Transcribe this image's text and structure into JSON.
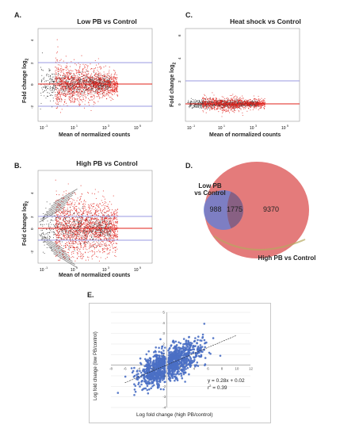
{
  "panels": {
    "a": {
      "letter": "A.",
      "title": "Low PB vs Control",
      "xlabel": "Mean of normalized counts",
      "ylabel_main": "Fold change log",
      "ylabel_sub": "2"
    },
    "b": {
      "letter": "B.",
      "title": "High PB vs Control",
      "xlabel": "Mean of normalized counts",
      "ylabel_main": "Fold change log",
      "ylabel_sub": "2"
    },
    "c": {
      "letter": "C.",
      "title": "Heat shock vs Control",
      "xlabel": "Mean of normalized counts",
      "ylabel_main": "Fold change log",
      "ylabel_sub": "2"
    },
    "d": {
      "letter": "D.",
      "label_low_1": "Low PB",
      "label_low_2": "vs Control",
      "label_high": "High PB vs Control"
    },
    "e": {
      "letter": "E.",
      "xlabel": "Log fold change (high PB/control)",
      "ylabel": "Log fold change (low PB/control)",
      "equation": "y = 0.28x + 0.02",
      "r2_prefix": "r",
      "r2_sup": "2",
      "r2_value": " = 0.39"
    }
  },
  "colors": {
    "red": "#e0201a",
    "gray": "#3c3c3c",
    "blue": "#4a6fc4",
    "venn_red": "#e27070",
    "venn_blue": "#6b7fd0",
    "line_blue": "#9a9ae0"
  },
  "chart_data": [
    {
      "type": "scatter",
      "panel": "A",
      "title": "Low PB vs Control",
      "xlabel": "Mean of normalized counts",
      "ylabel": "Fold change log2",
      "x_scale": "log",
      "x_ticks": [
        "10-1",
        "101",
        "103",
        "105"
      ],
      "y_ticks": [
        "4",
        "2",
        "0",
        "-2"
      ],
      "reference_lines": [
        2,
        0,
        -2
      ]
    },
    {
      "type": "scatter",
      "panel": "B",
      "title": "High PB vs Control",
      "xlabel": "Mean of normalized counts",
      "ylabel": "Fold change log2",
      "x_scale": "log",
      "x_ticks": [
        "10-1",
        "101",
        "103",
        "105"
      ],
      "y_ticks": [
        "4",
        "2",
        "0",
        "-2"
      ],
      "reference_lines": [
        1,
        0,
        -1
      ]
    },
    {
      "type": "scatter",
      "panel": "C",
      "title": "Heat shock vs Control",
      "xlabel": "Mean of normalized counts",
      "ylabel": "Fold change log2",
      "x_scale": "log",
      "x_ticks": [
        "10-1",
        "101",
        "103",
        "105"
      ],
      "y_ticks": [
        "6",
        "4",
        "2",
        "0"
      ],
      "reference_lines": [
        2,
        0
      ]
    },
    {
      "type": "venn",
      "panel": "D",
      "sets": [
        {
          "name": "Low PB vs Control",
          "only": 988
        },
        {
          "name": "High PB vs Control",
          "only": 9370
        }
      ],
      "intersection": 1775
    },
    {
      "type": "scatter",
      "panel": "E",
      "xlabel": "Log fold change (high PB/control)",
      "ylabel": "Log fold change (low PB/control)",
      "x_ticks": [
        -8,
        -6,
        -4,
        -2,
        2,
        4,
        6,
        8,
        10,
        12
      ],
      "y_ticks": [
        5,
        4,
        3,
        2,
        1,
        -1,
        -2,
        -3,
        -4
      ],
      "xlim": [
        -8,
        12
      ],
      "ylim": [
        -4,
        5
      ],
      "trendline": {
        "slope": 0.28,
        "intercept": 0.02,
        "r2": 0.39
      }
    }
  ]
}
